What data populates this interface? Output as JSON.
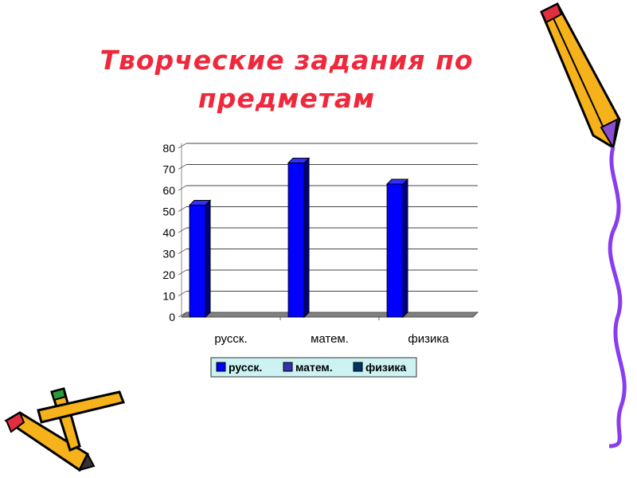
{
  "title": "Творческие задания по предметам",
  "chart_data": {
    "type": "bar",
    "title": "",
    "categories": [
      "русск.",
      "матем.",
      "физика"
    ],
    "series": [
      {
        "name": "русск.",
        "values": [
          53,
          0,
          0
        ],
        "color": "#0000ff"
      },
      {
        "name": "матем.",
        "values": [
          0,
          73,
          0
        ],
        "color": "#3333aa"
      },
      {
        "name": "физика",
        "values": [
          0,
          0,
          63
        ],
        "color": "#003366"
      }
    ],
    "bar_values": [
      53,
      73,
      63
    ],
    "ylim": [
      0,
      80
    ],
    "yticks": [
      0,
      10,
      20,
      30,
      40,
      50,
      60,
      70,
      80
    ],
    "grid": true,
    "legend_position": "bottom",
    "xlabel": "",
    "ylabel": ""
  },
  "colors": {
    "title": "#f0283c",
    "bar": "#0000ff",
    "legend_bg": "#ccf2f2"
  }
}
